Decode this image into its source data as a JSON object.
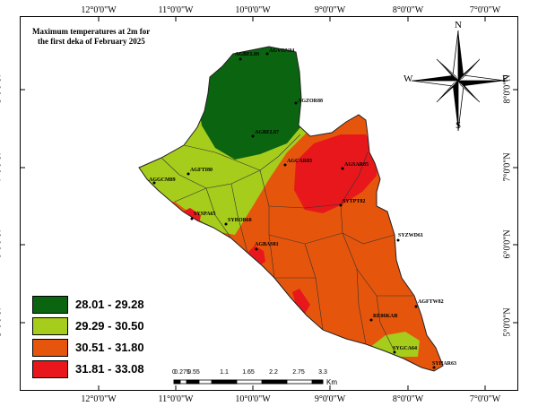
{
  "title": {
    "line1": "Maximum temperatures at 2m for",
    "line2": "the first deka of  February 2025"
  },
  "longitude_labels": [
    "12°0'0\"W",
    "11°0'0\"W",
    "10°0'0\"W",
    "9°0'0\"W",
    "8°0'0\"W",
    "7°0'0\"W"
  ],
  "latitude_labels": [
    "8°0'0\"N",
    "7°0'0\"N",
    "6°0'0\"N",
    "5°0'0\"N"
  ],
  "legend": {
    "items": [
      {
        "label": "28.01 - 29.28",
        "color": "#0a6410"
      },
      {
        "label": "29.29 - 30.50",
        "color": "#a6cc1c"
      },
      {
        "label": "30.51 - 31.80",
        "color": "#e5560c"
      },
      {
        "label": "31.81 - 33.08",
        "color": "#e8171c"
      }
    ]
  },
  "scale_bar": {
    "ticks": [
      "0",
      "0.275",
      "0.55",
      "1.1",
      "1.65",
      "2.2",
      "2.75",
      "3.3"
    ],
    "unit": "Km"
  },
  "compass": {
    "n": "N",
    "s": "S",
    "e": "E",
    "w": "W"
  },
  "stations": [
    "AGVON84",
    "AGBEL89",
    "AGZOR88",
    "AGBEL87",
    "AGFTI80",
    "AGGCM89",
    "AGCAR83",
    "AGSAR85",
    "SYTPT02",
    "SYSPA65",
    "SYROB60",
    "AGBAS81",
    "SYZWD61",
    "AGFTW82",
    "RE06KAB",
    "SYGCA64",
    "SYHAR63"
  ]
}
